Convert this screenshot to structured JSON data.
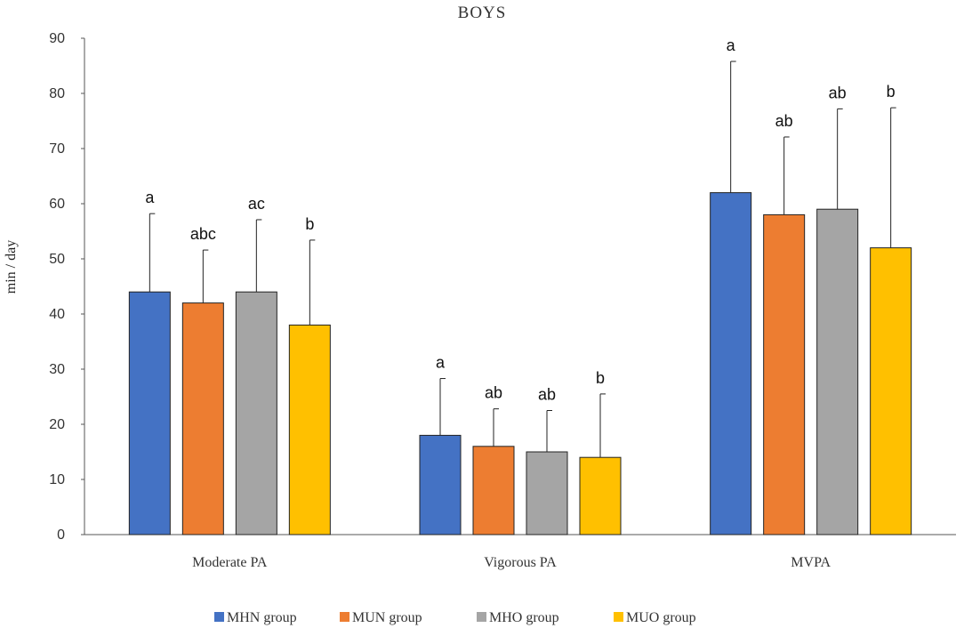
{
  "chart_data": {
    "type": "bar",
    "title": "BOYS",
    "xlabel": "",
    "ylabel": "min / day",
    "ylim": [
      0,
      90
    ],
    "yticks": [
      "0",
      "10",
      "20",
      "30",
      "40",
      "50",
      "60",
      "70",
      "80",
      "90"
    ],
    "grid": false,
    "legend_position": "bottom",
    "categories": [
      "Moderate PA",
      "Vigorous PA",
      "MVPA"
    ],
    "series": [
      {
        "name": "MHN group",
        "color": "#4472C4",
        "values": [
          44,
          18,
          62
        ],
        "error": [
          14.2,
          10.3,
          23.8
        ],
        "letters": [
          "a",
          "a",
          "a"
        ]
      },
      {
        "name": "MUN group",
        "color": "#ED7D31",
        "values": [
          42,
          16,
          58
        ],
        "error": [
          9.6,
          6.8,
          14.1
        ],
        "letters": [
          "abc",
          "ab",
          "ab"
        ]
      },
      {
        "name": "MHO group",
        "color": "#A5A5A5",
        "values": [
          44,
          15,
          59
        ],
        "error": [
          13.1,
          7.5,
          18.2
        ],
        "letters": [
          "ac",
          "ab",
          "ab"
        ]
      },
      {
        "name": "MUO group",
        "color": "#FFC000",
        "values": [
          38,
          14,
          52
        ],
        "error": [
          15.4,
          11.5,
          25.4
        ],
        "letters": [
          "b",
          "b",
          "b"
        ]
      }
    ]
  }
}
